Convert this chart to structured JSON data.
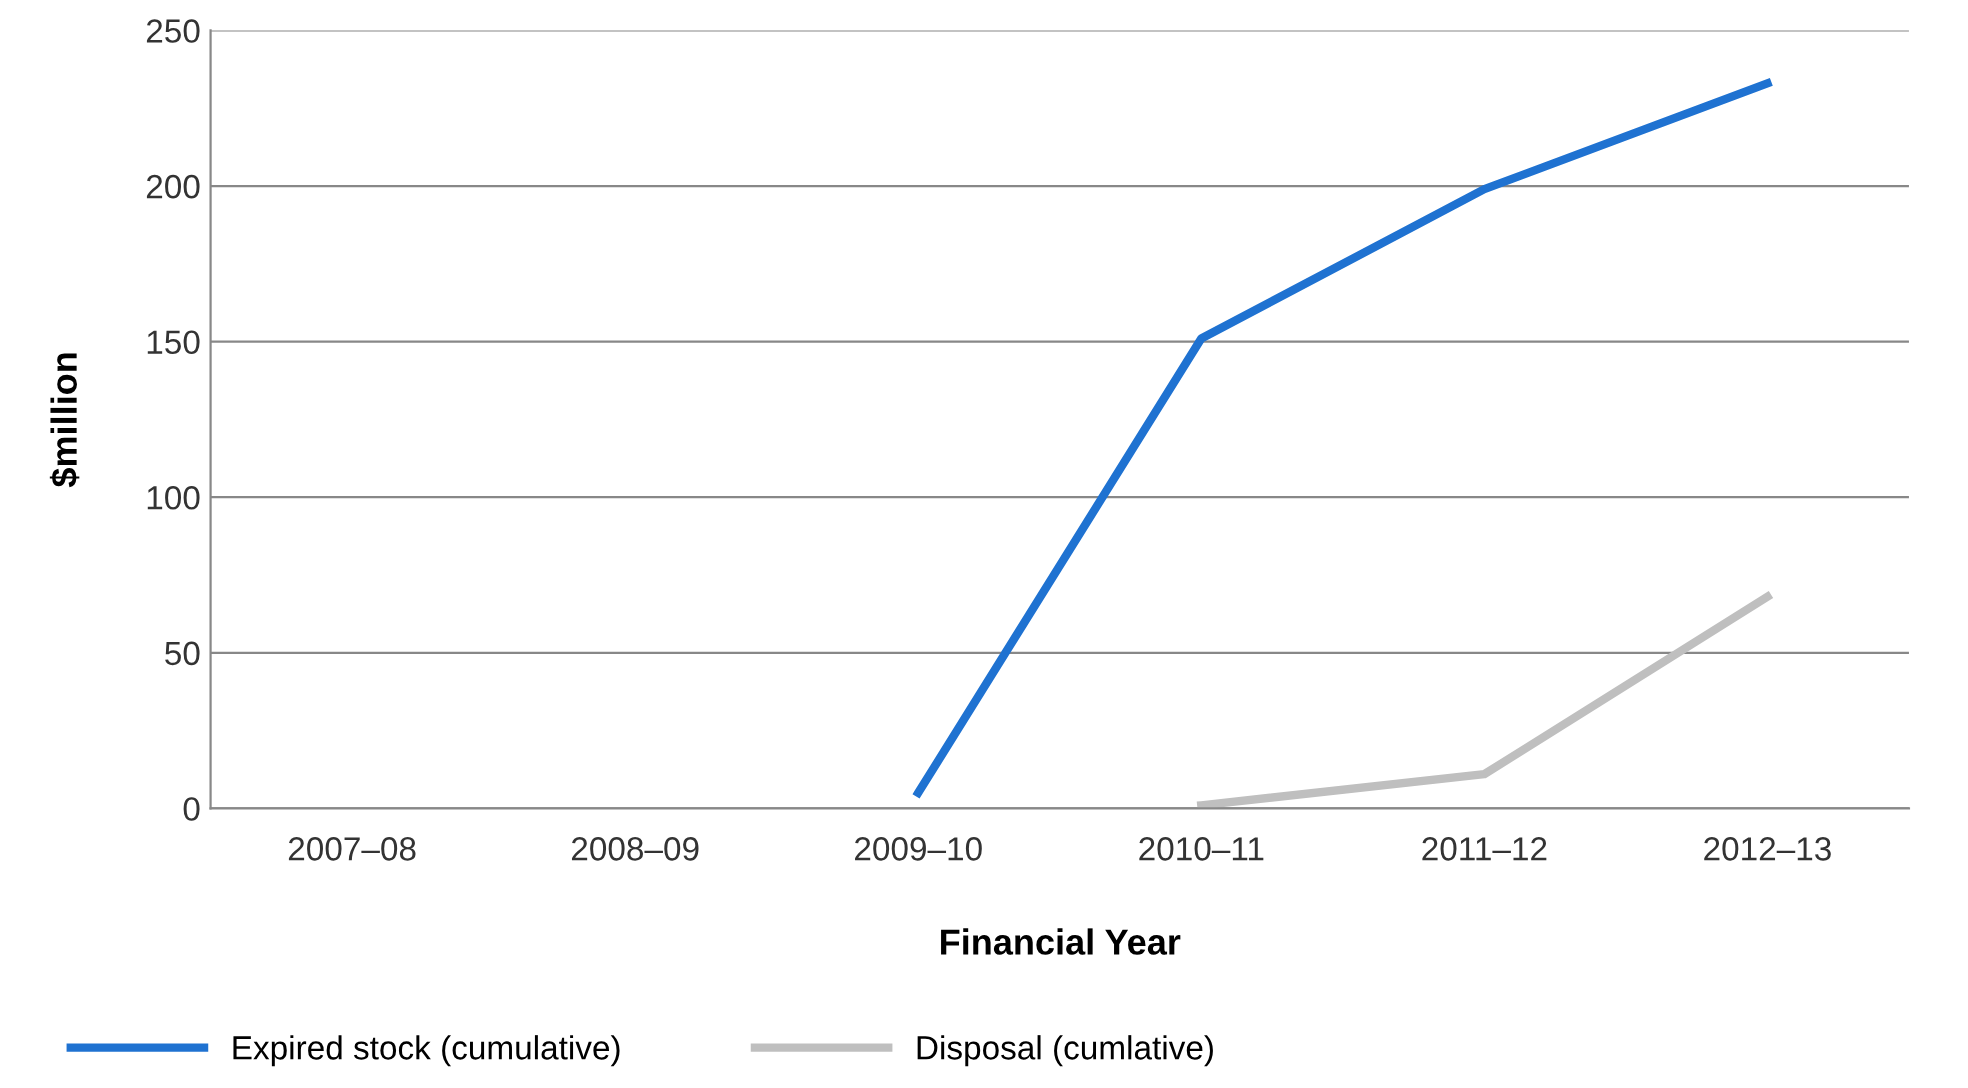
{
  "chart_data": {
    "type": "line",
    "xlabel": "Financial Year",
    "ylabel": "$million",
    "categories": [
      "2007–08",
      "2008–09",
      "2009–10",
      "2010–11",
      "2011–12",
      "2012–13"
    ],
    "series": [
      {
        "name": "Expired stock (cumulative)",
        "color": "#1f72d1",
        "values": [
          null,
          null,
          5,
          151,
          199,
          233
        ]
      },
      {
        "name": "Disposal (cumlative)",
        "color": "#bfbfbf",
        "values": [
          null,
          null,
          null,
          1,
          11,
          68
        ]
      }
    ],
    "ylim": [
      0,
      250
    ],
    "yticks": [
      0,
      50,
      100,
      150,
      200,
      250
    ],
    "grid": "y",
    "legend": "bottom",
    "marker": "none",
    "line_style": "solid"
  }
}
